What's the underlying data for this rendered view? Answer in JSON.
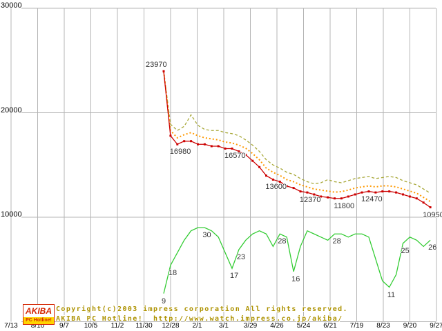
{
  "chart_data": {
    "type": "line",
    "title": "",
    "grid": true,
    "legend": "none",
    "x_tick_labels": [
      "7/13",
      "8/10",
      "9/7",
      "10/5",
      "11/2",
      "11/30",
      "12/28",
      "2/1",
      "3/1",
      "3/29",
      "4/26",
      "5/24",
      "6/21",
      "7/19",
      "8/23",
      "9/20",
      "9/27"
    ],
    "y_tick_labels": [
      "30000",
      "20000",
      "10000"
    ],
    "y_tick_values": [
      30000,
      20000,
      10000
    ],
    "price_ylim": [
      0,
      30000
    ],
    "count_ylim": [
      0,
      100
    ],
    "series": [
      {
        "name": "highest-price",
        "color": "#a8a838",
        "style": "dashed",
        "axis": "price",
        "values": [
          23970,
          18900,
          18300,
          18700,
          19800,
          18800,
          18400,
          18300,
          18300,
          18100,
          18000,
          17800,
          17400,
          16900,
          16300,
          15500,
          15000,
          14700,
          14300,
          14100,
          13700,
          13400,
          13200,
          13300,
          13600,
          13400,
          13300,
          13500,
          13700,
          13800,
          13900,
          13700,
          13800,
          13900,
          13800,
          13500,
          13300,
          13100,
          12700,
          12300
        ],
        "labels": []
      },
      {
        "name": "average-price",
        "color": "#ff9900",
        "style": "dotted",
        "axis": "price",
        "values": [
          23970,
          18300,
          17600,
          17900,
          18100,
          17800,
          17600,
          17500,
          17400,
          17200,
          17100,
          16900,
          16600,
          16100,
          15500,
          14700,
          14300,
          14000,
          13600,
          13400,
          13100,
          12900,
          12700,
          12600,
          12500,
          12400,
          12450,
          12600,
          12800,
          12900,
          13000,
          12900,
          13000,
          13000,
          12900,
          12700,
          12500,
          12300,
          11900,
          11500
        ],
        "labels": []
      },
      {
        "name": "shop-count",
        "color": "#33cc33",
        "style": "solid",
        "axis": "count",
        "values": [
          9,
          18,
          22,
          26,
          29,
          30,
          30,
          29,
          27,
          22,
          17,
          23,
          26,
          28,
          29,
          28,
          24,
          28,
          27,
          16,
          24,
          29,
          28,
          27,
          26,
          28,
          28,
          27,
          28,
          28,
          27,
          20,
          13,
          11,
          15,
          25,
          27,
          26,
          24,
          26
        ],
        "labels": [
          {
            "week": 0,
            "value": 9,
            "pos": "below"
          },
          {
            "week": 1,
            "value": 18,
            "pos": "below"
          },
          {
            "week": 6,
            "value": 30,
            "pos": "below"
          },
          {
            "week": 10,
            "value": 17,
            "pos": "below"
          },
          {
            "week": 11,
            "value": 23,
            "pos": "below"
          },
          {
            "week": 17,
            "value": 28,
            "pos": "below"
          },
          {
            "week": 19,
            "value": 16,
            "pos": "below"
          },
          {
            "week": 25,
            "value": 28,
            "pos": "below"
          },
          {
            "week": 33,
            "value": 11,
            "pos": "below"
          },
          {
            "week": 35,
            "value": 25,
            "pos": "below"
          },
          {
            "week": 39,
            "value": 26,
            "pos": "below"
          }
        ]
      },
      {
        "name": "lowest-price",
        "color": "#cc0000",
        "style": "solid-markers",
        "axis": "price",
        "values": [
          23970,
          17800,
          16980,
          17280,
          17280,
          16980,
          16980,
          16800,
          16800,
          16570,
          16570,
          16300,
          15980,
          15400,
          14800,
          13980,
          13600,
          13400,
          12980,
          12800,
          12470,
          12370,
          12180,
          11980,
          11900,
          11800,
          11800,
          11980,
          12180,
          12370,
          12470,
          12370,
          12470,
          12470,
          12370,
          12180,
          11980,
          11800,
          11400,
          10950
        ],
        "labels": [
          {
            "week": 0,
            "value": 23970,
            "pos": "above"
          },
          {
            "week": 2,
            "value": 16980,
            "pos": "below"
          },
          {
            "week": 10,
            "value": 16570,
            "pos": "below"
          },
          {
            "week": 16,
            "value": 13600,
            "pos": "below"
          },
          {
            "week": 21,
            "value": 12370,
            "pos": "below"
          },
          {
            "week": 26,
            "value": 11800,
            "pos": "below"
          },
          {
            "week": 30,
            "value": 12470,
            "pos": "below"
          },
          {
            "week": 39,
            "value": 10950,
            "pos": "below"
          }
        ]
      }
    ]
  },
  "footer": {
    "copyright_line": "Copyright(c)2003 impress corporation All rights reserved.",
    "site_line": "AKIBA PC Hotline!  http://www.watch.impress.co.jp/akiba/",
    "logo": {
      "title": "AKIBA",
      "subtitle": "PC Hotline!"
    }
  }
}
